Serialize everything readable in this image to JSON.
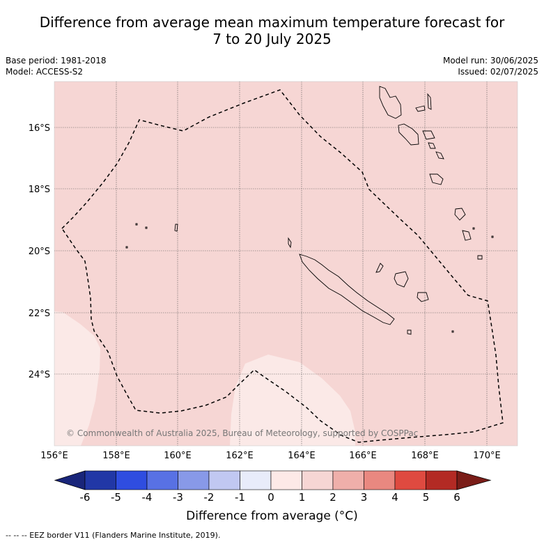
{
  "title_line1": "Difference from average mean maximum temperature forecast for",
  "title_line2": "7 to 20 July 2025",
  "base_period": "Base period: 1981-2018",
  "model": "Model: ACCESS-S2",
  "model_run": "Model run: 30/06/2025",
  "issued": "Issued: 02/07/2025",
  "copyright": "© Commonwealth of Australia 2025, Bureau of Meteorology, supported by COSPPac",
  "colorbar_label": "Difference from average (°C)",
  "footnote": "--  --  -- EEZ border V11 (Flanders Marine Institute, 2019).",
  "lon_ticks": [
    "156°E",
    "158°E",
    "160°E",
    "162°E",
    "164°E",
    "166°E",
    "168°E",
    "170°E"
  ],
  "lat_ticks": [
    "16°S",
    "18°S",
    "20°S",
    "22°S",
    "24°S"
  ],
  "colorbar": {
    "ticks": [
      "-6",
      "-5",
      "-4",
      "-3",
      "-2",
      "-1",
      "0",
      "1",
      "2",
      "3",
      "4",
      "5",
      "6"
    ],
    "colors": [
      "#2137a6",
      "#2f4de0",
      "#5871e4",
      "#8899e8",
      "#c1c8f2",
      "#e8ecfa",
      "#fde9e7",
      "#f6d6d4",
      "#efafaa",
      "#e98880",
      "#df4a40",
      "#b32a24"
    ],
    "under_color": "#19257a",
    "over_color": "#7a1d18"
  },
  "map": {
    "background_color": "#f6d6d4",
    "patch_color": "#fbe9e7"
  }
}
